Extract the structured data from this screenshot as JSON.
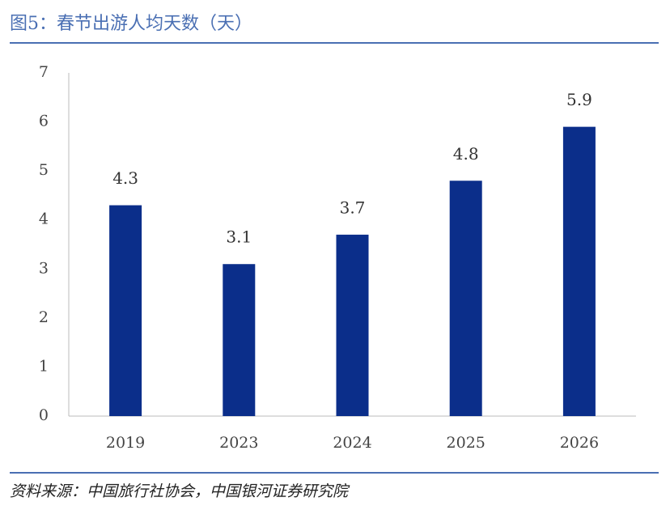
{
  "chart_data": {
    "type": "bar",
    "title": "图5：春节出游人均天数（天）",
    "source": "资料来源：中国旅行社协会，中国银河证券研究院",
    "categories": [
      "2019",
      "2023",
      "2024",
      "2025",
      "2026"
    ],
    "values": [
      4.3,
      3.1,
      3.7,
      4.8,
      5.9
    ],
    "color": "#0b2e8a",
    "ylim": [
      0,
      7
    ],
    "yticks": [
      0,
      1,
      2,
      3,
      4,
      5,
      6,
      7
    ],
    "grid": false
  }
}
